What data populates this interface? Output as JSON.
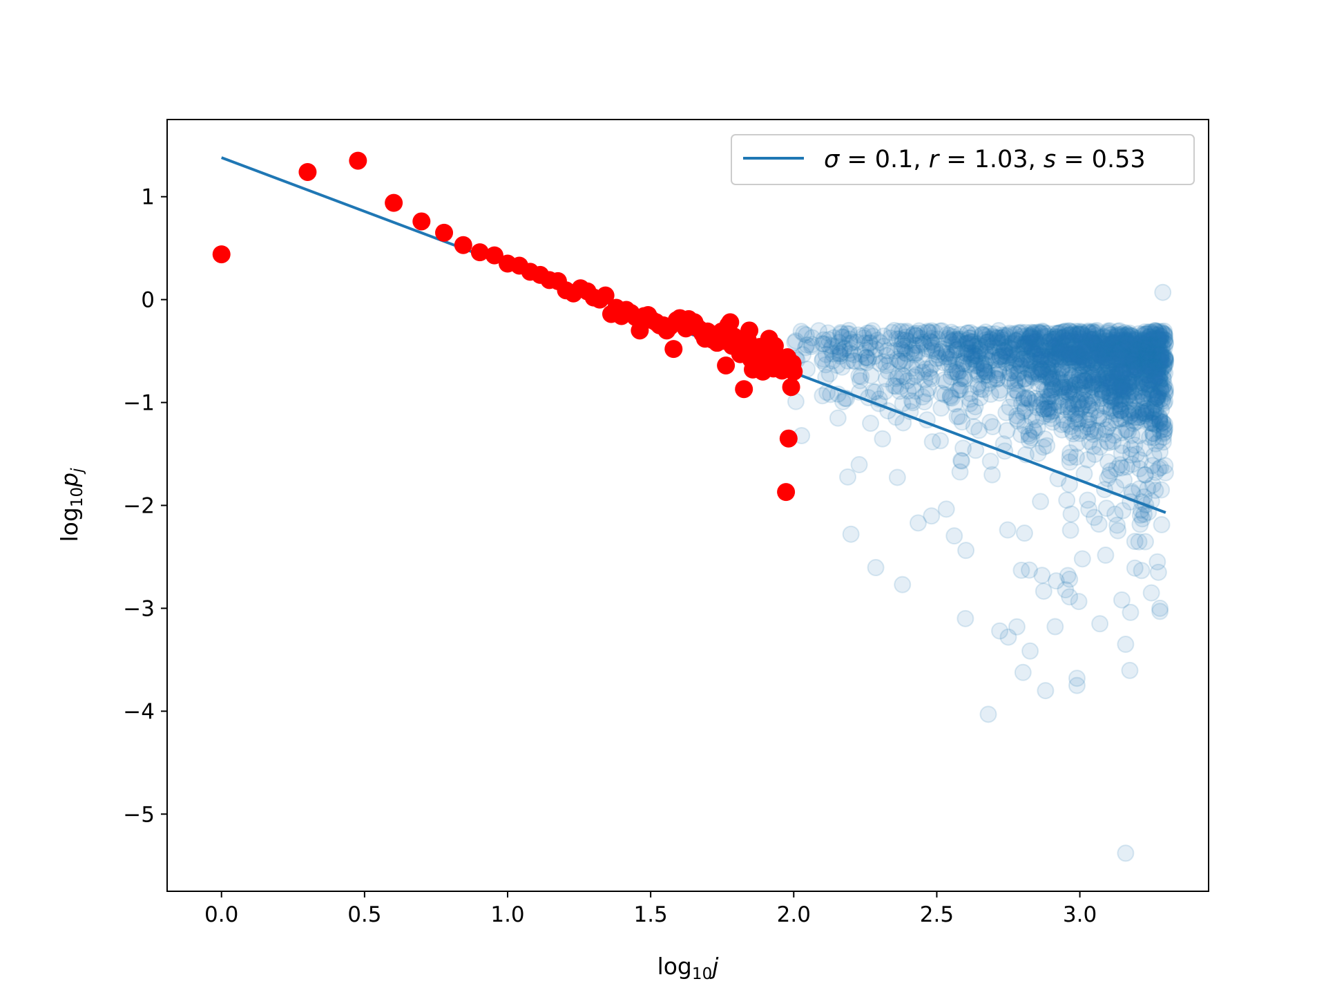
{
  "chart_data": {
    "type": "scatter",
    "xlabel": {
      "base": "log",
      "sub": "10",
      "var": "j"
    },
    "ylabel": {
      "base": "log",
      "sub": "10",
      "var": "p",
      "var_sub": "j"
    },
    "xlim": [
      -0.19,
      3.45
    ],
    "ylim": [
      -5.75,
      1.75
    ],
    "x_ticks": [
      0.0,
      0.5,
      1.0,
      1.5,
      2.0,
      2.5,
      3.0
    ],
    "x_tick_labels": [
      "0.0",
      "0.5",
      "1.0",
      "1.5",
      "2.0",
      "2.5",
      "3.0"
    ],
    "y_ticks": [
      1,
      0,
      -1,
      -2,
      -3,
      -4,
      -5
    ],
    "y_tick_labels": [
      "1",
      "0",
      "−1",
      "−2",
      "−3",
      "−4",
      "−5"
    ],
    "grid": false,
    "legend": {
      "position": "top-right",
      "entries": [
        {
          "parts": [
            {
              "t": "σ",
              "i": true
            },
            {
              "t": " = 0.1, "
            },
            {
              "t": "r",
              "i": true
            },
            {
              "t": " = 1.03, "
            },
            {
              "t": "s",
              "i": true
            },
            {
              "t": " = 0.53"
            }
          ]
        }
      ]
    },
    "colors": {
      "fit": "#1f77b4",
      "highlight": "#ff0000",
      "background": "#1f77b4"
    },
    "fit_line": {
      "x": [
        0.0,
        3.3
      ],
      "y": [
        1.38,
        -2.07
      ],
      "color": "#1f77b4"
    },
    "highlighted_points": {
      "color": "#ff0000",
      "points": [
        [
          0.0,
          0.44
        ],
        [
          0.301,
          1.24
        ],
        [
          0.477,
          1.35
        ],
        [
          0.602,
          0.94
        ],
        [
          0.699,
          0.76
        ],
        [
          0.778,
          0.65
        ],
        [
          0.845,
          0.53
        ],
        [
          0.903,
          0.46
        ],
        [
          0.954,
          0.43
        ],
        [
          1.0,
          0.35
        ],
        [
          1.041,
          0.33
        ],
        [
          1.079,
          0.27
        ],
        [
          1.114,
          0.24
        ],
        [
          1.146,
          0.19
        ],
        [
          1.176,
          0.18
        ],
        [
          1.204,
          0.09
        ],
        [
          1.23,
          0.06
        ],
        [
          1.255,
          0.11
        ],
        [
          1.279,
          0.08
        ],
        [
          1.301,
          0.02
        ],
        [
          1.322,
          0.0
        ],
        [
          1.342,
          0.04
        ],
        [
          1.362,
          -0.14
        ],
        [
          1.38,
          -0.08
        ],
        [
          1.398,
          -0.16
        ],
        [
          1.415,
          -0.1
        ],
        [
          1.431,
          -0.13
        ],
        [
          1.447,
          -0.17
        ],
        [
          1.462,
          -0.3
        ],
        [
          1.477,
          -0.16
        ],
        [
          1.491,
          -0.15
        ],
        [
          1.505,
          -0.2
        ],
        [
          1.519,
          -0.22
        ],
        [
          1.531,
          -0.25
        ],
        [
          1.544,
          -0.25
        ],
        [
          1.556,
          -0.3
        ],
        [
          1.568,
          -0.26
        ],
        [
          1.58,
          -0.48
        ],
        [
          1.591,
          -0.2
        ],
        [
          1.602,
          -0.18
        ],
        [
          1.613,
          -0.24
        ],
        [
          1.623,
          -0.28
        ],
        [
          1.633,
          -0.19
        ],
        [
          1.643,
          -0.26
        ],
        [
          1.653,
          -0.22
        ],
        [
          1.663,
          -0.27
        ],
        [
          1.672,
          -0.29
        ],
        [
          1.681,
          -0.33
        ],
        [
          1.69,
          -0.38
        ],
        [
          1.699,
          -0.31
        ],
        [
          1.708,
          -0.35
        ],
        [
          1.716,
          -0.39
        ],
        [
          1.724,
          -0.34
        ],
        [
          1.732,
          -0.42
        ],
        [
          1.74,
          -0.37
        ],
        [
          1.748,
          -0.31
        ],
        [
          1.756,
          -0.4
        ],
        [
          1.763,
          -0.64
        ],
        [
          1.771,
          -0.25
        ],
        [
          1.778,
          -0.22
        ],
        [
          1.785,
          -0.45
        ],
        [
          1.792,
          -0.36
        ],
        [
          1.799,
          -0.43
        ],
        [
          1.806,
          -0.47
        ],
        [
          1.813,
          -0.53
        ],
        [
          1.82,
          -0.5
        ],
        [
          1.826,
          -0.87
        ],
        [
          1.833,
          -0.45
        ],
        [
          1.839,
          -0.39
        ],
        [
          1.845,
          -0.3
        ],
        [
          1.851,
          -0.58
        ],
        [
          1.857,
          -0.68
        ],
        [
          1.863,
          -0.49
        ],
        [
          1.869,
          -0.55
        ],
        [
          1.875,
          -0.62
        ],
        [
          1.881,
          -0.46
        ],
        [
          1.886,
          -0.52
        ],
        [
          1.892,
          -0.7
        ],
        [
          1.898,
          -0.63
        ],
        [
          1.903,
          -0.55
        ],
        [
          1.908,
          -0.5
        ],
        [
          1.914,
          -0.38
        ],
        [
          1.919,
          -0.57
        ],
        [
          1.924,
          -0.6
        ],
        [
          1.929,
          -0.67
        ],
        [
          1.934,
          -0.45
        ],
        [
          1.94,
          -0.54
        ],
        [
          1.944,
          -0.59
        ],
        [
          1.949,
          -0.66
        ],
        [
          1.954,
          -0.61
        ],
        [
          1.959,
          -0.69
        ],
        [
          1.964,
          -0.58
        ],
        [
          1.968,
          -0.64
        ],
        [
          1.973,
          -1.87
        ],
        [
          1.978,
          -0.56
        ],
        [
          1.982,
          -1.35
        ],
        [
          1.987,
          -0.67
        ],
        [
          1.991,
          -0.85
        ],
        [
          1.996,
          -0.62
        ],
        [
          2.0,
          -0.7
        ]
      ]
    },
    "background_points": {
      "color": "#1f77b4",
      "opacity": 0.12,
      "count": 1900,
      "x_range": [
        2.0,
        3.3
      ],
      "notable_points": [
        [
          2.2,
          -2.28
        ],
        [
          2.38,
          -2.77
        ],
        [
          2.6,
          -3.1
        ],
        [
          2.68,
          -4.03
        ],
        [
          2.72,
          -3.22
        ],
        [
          2.75,
          -3.28
        ],
        [
          2.78,
          -3.18
        ],
        [
          2.88,
          -3.8
        ],
        [
          2.99,
          -3.75
        ],
        [
          2.99,
          -3.68
        ],
        [
          3.07,
          -3.15
        ],
        [
          3.16,
          -3.35
        ],
        [
          3.16,
          -5.38
        ],
        [
          3.28,
          -3.0
        ],
        [
          3.28,
          -3.03
        ],
        [
          3.29,
          0.07
        ],
        [
          2.52,
          -0.48
        ],
        [
          3.02,
          -0.5
        ],
        [
          2.95,
          -2.82
        ],
        [
          3.25,
          -2.85
        ]
      ]
    }
  }
}
